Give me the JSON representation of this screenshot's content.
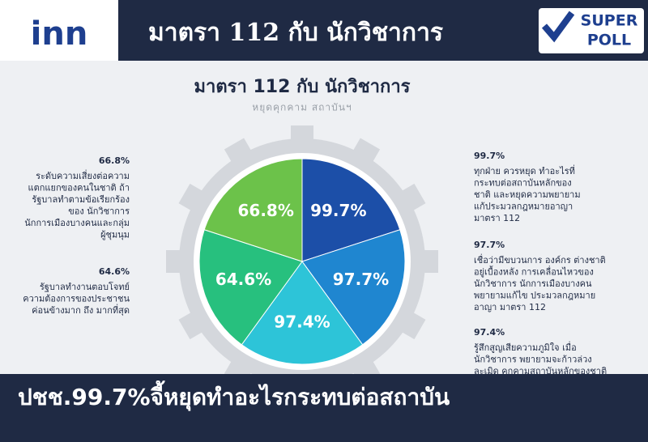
{
  "header": {
    "logo": "inn",
    "title": "มาตรา 112 กับ นักวิชาการ",
    "badge": [
      "SUPER",
      "POLL"
    ]
  },
  "infographic": {
    "title": "มาตรา 112 กับ นักวิชาการ",
    "subtitle": "หยุดคุกคาม สถาบันฯ",
    "items": [
      {
        "percent": "99.7%",
        "color": "#1c4fa8",
        "text": [
          "ทุกฝ่าย ควรหยุด ทำอะไรที่",
          "กระทบต่อสถาบันหลักของ",
          "ชาติ และหยุดความพยายาม",
          "แก้ประมวลกฎหมายอาญา",
          "มาตรา 112"
        ]
      },
      {
        "percent": "97.7%",
        "color": "#1f86d0",
        "text": [
          "เชื่อว่ามีขบวนการ องค์กร ต่างชาติ",
          "อยู่เบื้องหลัง การเคลื่อนไหวของ",
          "นักวิชาการ นักการเมืองบางคน",
          "พยายามแก้ไข ประมวลกฎหมาย",
          "อาญา มาตรา 112"
        ]
      },
      {
        "percent": "97.4%",
        "color": "#2dc4d8",
        "text": [
          "รู้สึกสูญเสียความภูมิใจ เมื่อ",
          "นักวิชาการ พยายามจะก้าวล่วง",
          "ละเมิด คุกคามสถาบันหลักของชาติ"
        ]
      },
      {
        "percent": "64.6%",
        "color": "#27c07e",
        "text": [
          "รัฐบาลทำงานตอบโจทย์",
          "ความต้องการของประชาชน",
          "ค่อนข้างมาก ถึง มากที่สุด"
        ]
      },
      {
        "percent": "66.8%",
        "color": "#6cc24a",
        "text": [
          "ระดับความเสี่ยงต่อความ",
          "แตกแยกของคนในชาติ ถ้า",
          "รัฐบาลทำตามข้อเรียกร้อง",
          "ของ นักวิชาการ",
          "นักการเมืองบางคนและกลุ่ม",
          "ผู้ชุมนุม"
        ]
      }
    ]
  },
  "banner": {
    "headline": "ปชช.99.7%จี้หยุดทำอะไรกระทบต่อสถาบัน"
  }
}
